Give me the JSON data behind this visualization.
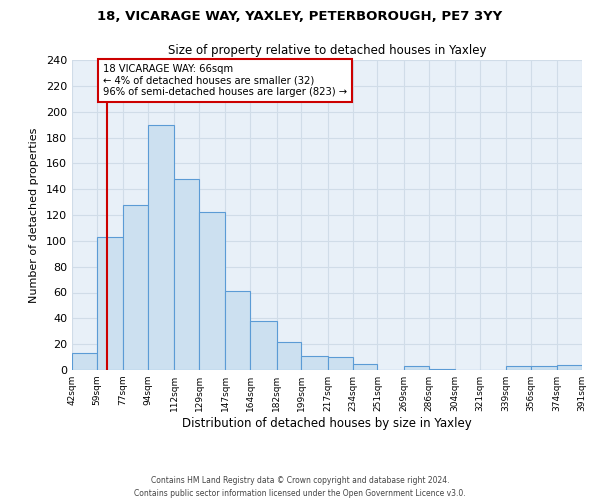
{
  "title_line1": "18, VICARAGE WAY, YAXLEY, PETERBOROUGH, PE7 3YY",
  "title_line2": "Size of property relative to detached houses in Yaxley",
  "xlabel": "Distribution of detached houses by size in Yaxley",
  "ylabel": "Number of detached properties",
  "bin_edges": [
    42,
    59,
    77,
    94,
    112,
    129,
    147,
    164,
    182,
    199,
    217,
    234,
    251,
    269,
    286,
    304,
    321,
    339,
    356,
    374,
    391
  ],
  "bin_labels": [
    "42sqm",
    "59sqm",
    "77sqm",
    "94sqm",
    "112sqm",
    "129sqm",
    "147sqm",
    "164sqm",
    "182sqm",
    "199sqm",
    "217sqm",
    "234sqm",
    "251sqm",
    "269sqm",
    "286sqm",
    "304sqm",
    "321sqm",
    "339sqm",
    "356sqm",
    "374sqm",
    "391sqm"
  ],
  "counts": [
    13,
    103,
    128,
    190,
    148,
    122,
    61,
    38,
    22,
    11,
    10,
    5,
    0,
    3,
    1,
    0,
    0,
    3,
    3,
    4
  ],
  "bar_facecolor": "#cce0f0",
  "bar_edgecolor": "#5b9bd5",
  "vline_x": 66,
  "vline_color": "#cc0000",
  "annotation_text": "18 VICARAGE WAY: 66sqm\n← 4% of detached houses are smaller (32)\n96% of semi-detached houses are larger (823) →",
  "annotation_box_edgecolor": "#cc0000",
  "annotation_box_facecolor": "#ffffff",
  "ylim": [
    0,
    240
  ],
  "yticks": [
    0,
    20,
    40,
    60,
    80,
    100,
    120,
    140,
    160,
    180,
    200,
    220,
    240
  ],
  "grid_color": "#d0dce8",
  "background_color": "#e8f0f8",
  "footer_line1": "Contains HM Land Registry data © Crown copyright and database right 2024.",
  "footer_line2": "Contains public sector information licensed under the Open Government Licence v3.0."
}
